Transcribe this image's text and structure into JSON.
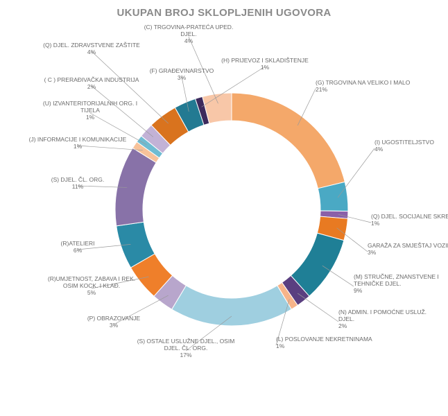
{
  "chart_data": {
    "type": "pie",
    "title": "UKUPAN BROJ SKLOPLJENIH UGOVORA",
    "slices": [
      {
        "name": "(G) TRGOVINA NA VELIKO I MALO",
        "value": 21,
        "label": "21%",
        "color": "#f4a86a"
      },
      {
        "name": "(I) UGOSTITELJSTVO",
        "value": 4,
        "label": "4%",
        "color": "#4aa9c4"
      },
      {
        "name": "(Q) DJEL. SOCIJALNE SKRBI",
        "value": 1,
        "label": "1%",
        "color": "#8a5fa8"
      },
      {
        "name": "GARAŽA ZA SMJEŠTAJ VOZILA",
        "value": 3,
        "label": "3%",
        "color": "#e87a22"
      },
      {
        "name": "(M) STRUČNE, ZNANSTVENE I TEHNIČKE DJEL.",
        "value": 9,
        "label": "9%",
        "color": "#1f7f96"
      },
      {
        "name": "(N) ADMIN. I POMOĆNE USLUŽ. DJEL.",
        "value": 2,
        "label": "2%",
        "color": "#5a3f80"
      },
      {
        "name": "(L) POSLOVANJE NEKRETNINAMA",
        "value": 1,
        "label": "1%",
        "color": "#f6b48a"
      },
      {
        "name": "(S) OSTALE USLUŽNE DJEL., OSIM DJEL. ČL. ORG.",
        "value": 17,
        "label": "17%",
        "color": "#9fcfe0"
      },
      {
        "name": "(P) OBRAZOVANJE",
        "value": 3,
        "label": "3%",
        "color": "#b8a6cc"
      },
      {
        "name": "(R)UMJETNOST, ZABAVA I REK. OSIM KOCK. I KLAĐ.",
        "value": 5,
        "label": "5%",
        "color": "#ef7f2a"
      },
      {
        "name": "(R)ATELIERI",
        "value": 6,
        "label": "6%",
        "color": "#2a8aa6"
      },
      {
        "name": "(S) DJEL. ČL. ORG.",
        "value": 11,
        "label": "11%",
        "color": "#8872a8"
      },
      {
        "name": "(J) INFORMACIJE I KOMUNIKACIJE",
        "value": 1,
        "label": "1%",
        "color": "#f7c29a"
      },
      {
        "name": "(U) IZVANTERITORIJALNIH ORG. I TIJELA",
        "value": 1,
        "label": "1%",
        "color": "#6fbcd2"
      },
      {
        "name": "( C ) PRERAĐIVAČKA INDUSTRIJA",
        "value": 2,
        "label": "2%",
        "color": "#c2b2d6"
      },
      {
        "name": "(Q) DJEL. ZDRAVSTVENE ZAŠTITE",
        "value": 4,
        "label": "4%",
        "color": "#d9731e"
      },
      {
        "name": "(F) GRAĐEVINARSTVO",
        "value": 3,
        "label": "3%",
        "color": "#237a92"
      },
      {
        "name": "(H) PRIJEVOZ I SKLADIŠTENJE",
        "value": 1,
        "label": "1%",
        "color": "#3d2a5c"
      },
      {
        "name": "(C) TRGOVINA-PRATEĆA UPED. DJEL.",
        "value": 4,
        "label": "4%",
        "color": "#f8c7a8"
      }
    ]
  }
}
